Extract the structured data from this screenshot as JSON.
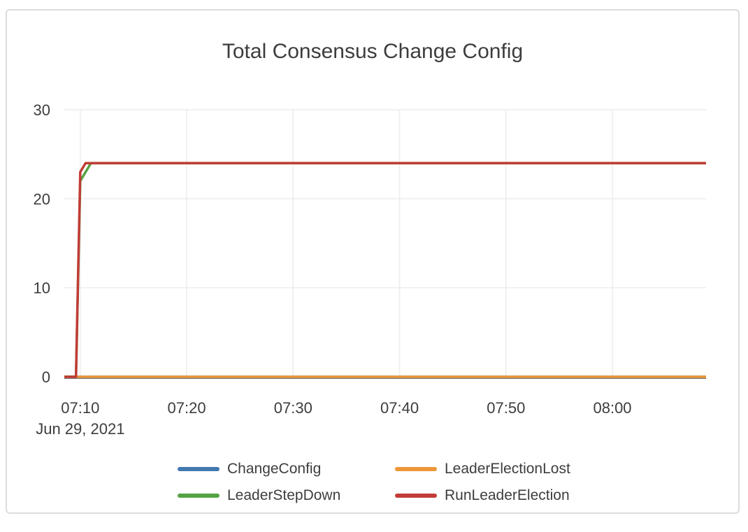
{
  "colors": {
    "text": "#3d3d3d",
    "grid": "#ececec",
    "axis_line": "#545454",
    "card_border": "#dcdcdc",
    "background": "#ffffff"
  },
  "chart_data": {
    "type": "line",
    "title": "Total Consensus Change Config",
    "legend_position": "bottom",
    "grid": true,
    "x_axis": {
      "date_label": "Jun 29, 2021",
      "range_minutes_after_0700": [
        8.5,
        68.8
      ],
      "ticks": [
        {
          "t": 10,
          "label": "07:10"
        },
        {
          "t": 20,
          "label": "07:20"
        },
        {
          "t": 30,
          "label": "07:30"
        },
        {
          "t": 40,
          "label": "07:40"
        },
        {
          "t": 50,
          "label": "07:50"
        },
        {
          "t": 60,
          "label": "08:00"
        }
      ]
    },
    "y_axis": {
      "range": [
        0,
        30
      ],
      "ticks": [
        0,
        10,
        20,
        30
      ]
    },
    "series": [
      {
        "name": "ChangeConfig",
        "color": "#4279af",
        "points": [
          [
            8.5,
            0
          ],
          [
            68.8,
            0
          ]
        ]
      },
      {
        "name": "LeaderElectionLost",
        "color": "#ee9637",
        "points": [
          [
            8.5,
            0
          ],
          [
            68.8,
            0
          ]
        ]
      },
      {
        "name": "LeaderStepDown",
        "color": "#55a344",
        "points": [
          [
            8.5,
            0
          ],
          [
            9.6,
            0
          ],
          [
            10,
            22
          ],
          [
            11,
            24
          ],
          [
            68.8,
            24
          ]
        ]
      },
      {
        "name": "RunLeaderElection",
        "color": "#c13c36",
        "points": [
          [
            8.5,
            0
          ],
          [
            9.6,
            0
          ],
          [
            10,
            23
          ],
          [
            10.5,
            24
          ],
          [
            68.8,
            24
          ]
        ]
      }
    ]
  }
}
